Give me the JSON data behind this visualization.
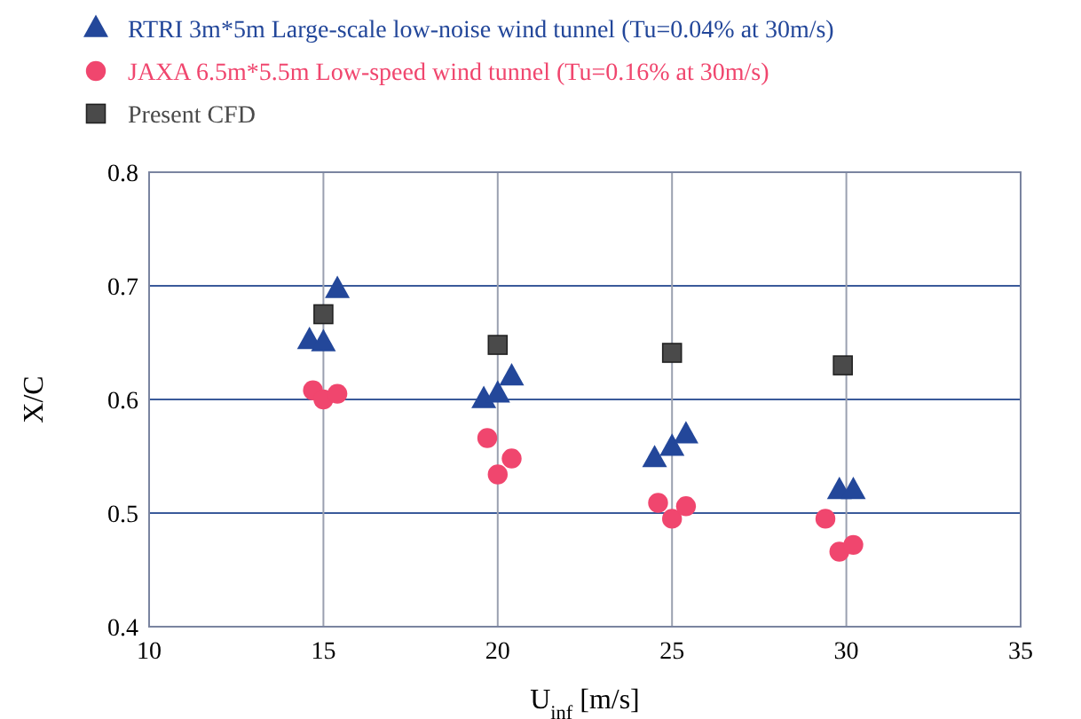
{
  "chart_data": {
    "type": "scatter",
    "xlabel": "U$_{inf}$ [m/s]",
    "ylabel": "X/C",
    "xlim": [
      10,
      35
    ],
    "xticks": [
      10,
      15,
      20,
      25,
      30,
      35
    ],
    "ylim": [
      0.4,
      0.8
    ],
    "yticks": [
      0.4,
      0.5,
      0.6,
      0.7,
      0.8
    ],
    "grid": true,
    "legend": "top left",
    "series": [
      {
        "name": "RTRI 3m*5m Large-scale low-noise wind tunnel (Tu=0.04% at 30m/s)",
        "color": "#23479a",
        "marker": "triangle",
        "x": [
          14.6,
          15.0,
          15.4,
          19.6,
          20.0,
          20.4,
          24.5,
          25.0,
          25.4,
          29.8,
          30.2
        ],
        "values": [
          0.652,
          0.65,
          0.697,
          0.6,
          0.605,
          0.62,
          0.548,
          0.558,
          0.569,
          0.52,
          0.52
        ]
      },
      {
        "name": "JAXA 6.5m*5.5m Low-speed wind tunnel (Tu=0.16% at 30m/s)",
        "color": "#f0466e",
        "marker": "circle",
        "x": [
          14.7,
          15.0,
          15.4,
          19.7,
          20.0,
          20.4,
          24.6,
          25.0,
          25.4,
          29.4,
          29.8,
          30.2
        ],
        "values": [
          0.608,
          0.6,
          0.605,
          0.566,
          0.534,
          0.548,
          0.509,
          0.495,
          0.506,
          0.495,
          0.466,
          0.472
        ]
      },
      {
        "name": "Present CFD",
        "color": "#4a4a4a",
        "marker": "square",
        "x": [
          15.0,
          20.0,
          25.0,
          29.9
        ],
        "values": [
          0.675,
          0.648,
          0.641,
          0.63
        ]
      }
    ]
  }
}
